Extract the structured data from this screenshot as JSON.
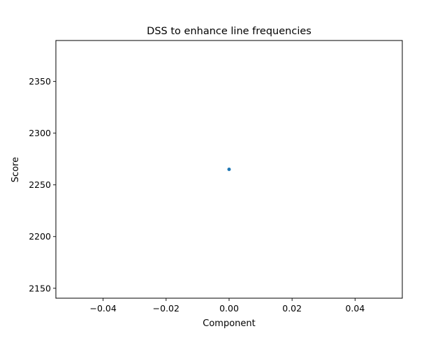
{
  "chart_data": {
    "type": "scatter",
    "title": "DSS to enhance line frequencies",
    "xlabel": "Component",
    "ylabel": "Score",
    "xlim": [
      -0.055,
      0.055
    ],
    "ylim": [
      2140.4,
      2389.6
    ],
    "xticks": [
      -0.04,
      -0.02,
      0.0,
      0.02,
      0.04
    ],
    "xtick_labels": [
      "−0.04",
      "−0.02",
      "0.00",
      "0.02",
      "0.04"
    ],
    "yticks": [
      2150,
      2200,
      2250,
      2300,
      2350
    ],
    "ytick_labels": [
      "2150",
      "2200",
      "2250",
      "2300",
      "2350"
    ],
    "grid": false,
    "legend": "none",
    "series": [
      {
        "color": "#1f77b4",
        "points": [
          {
            "x": 0,
            "y": 2265
          }
        ]
      }
    ]
  }
}
